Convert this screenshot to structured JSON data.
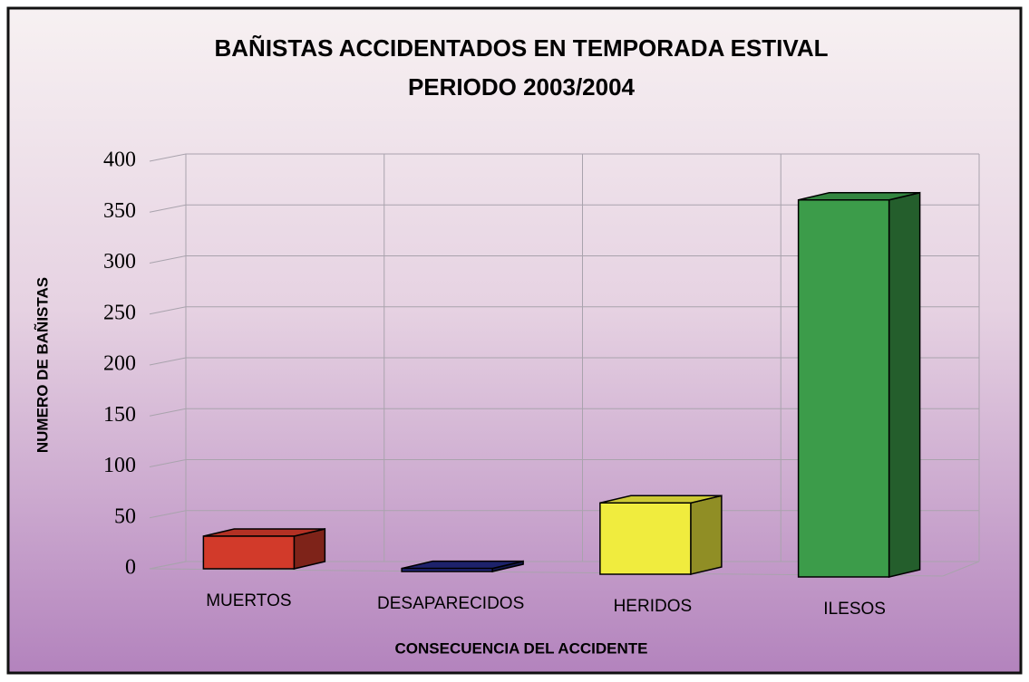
{
  "chart_data": {
    "type": "bar3d",
    "title": "BAÑISTAS ACCIDENTADOS EN TEMPORADA ESTIVAL",
    "subtitle": "PERIODO 2003/2004",
    "x_label": "CONSECUENCIA DEL ACCIDENTE",
    "y_label": "NUMERO DE BAÑISTAS",
    "categories": [
      "MUERTOS",
      "DESAPARECIDOS",
      "HERIDOS",
      "ILESOS"
    ],
    "values": [
      32,
      3,
      70,
      370
    ],
    "colors": [
      "#d23a2a",
      "#22287e",
      "#f0ec3e",
      "#3c9c4a"
    ],
    "ylim": [
      0,
      400
    ],
    "yticks": [
      0,
      50,
      100,
      150,
      200,
      250,
      300,
      350,
      400
    ],
    "grid": true
  }
}
